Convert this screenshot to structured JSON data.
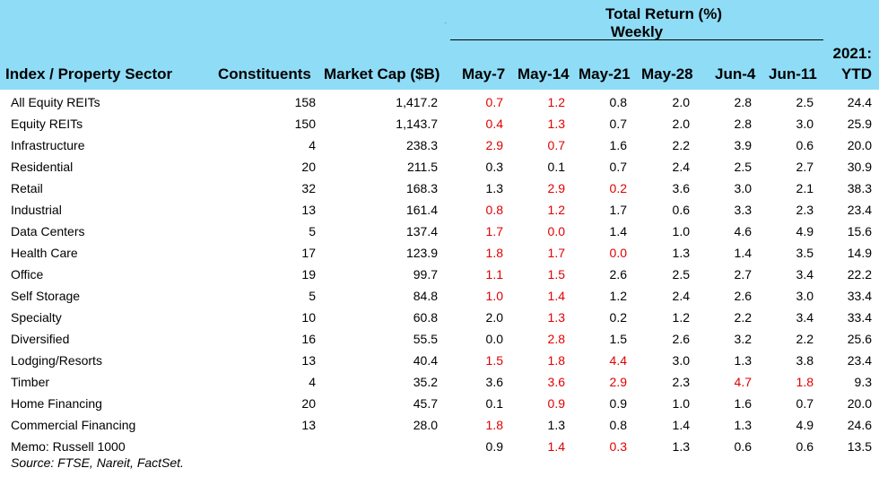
{
  "header": {
    "group_line1": "Total Return (%)",
    "group_line2": "Weekly",
    "dot": "."
  },
  "columns": {
    "sector": "Index / Property Sector",
    "constituents": "Constituents",
    "market_cap": "Market Cap ($B)",
    "weeks": [
      "May-7",
      "May-14",
      "May-21",
      "May-28",
      "Jun-4",
      "Jun-11"
    ],
    "ytd_line1": "2021:",
    "ytd_line2": "YTD"
  },
  "colors": {
    "header_bg": "#8fdcf6",
    "highlight_red": "#e00000"
  },
  "chart_data": {
    "type": "table",
    "rows": [
      {
        "sector": "All Equity REITs",
        "constituents": "158",
        "market_cap": "1,417.2",
        "weekly": [
          "0.7",
          "1.2",
          "0.8",
          "2.0",
          "2.8",
          "2.5"
        ],
        "red": [
          1,
          1,
          0,
          0,
          0,
          0
        ],
        "ytd": "24.4"
      },
      {
        "sector": "Equity REITs",
        "constituents": "150",
        "market_cap": "1,143.7",
        "weekly": [
          "0.4",
          "1.3",
          "0.7",
          "2.0",
          "2.8",
          "3.0"
        ],
        "red": [
          1,
          1,
          0,
          0,
          0,
          0
        ],
        "ytd": "25.9"
      },
      {
        "sector": "Infrastructure",
        "constituents": "4",
        "market_cap": "238.3",
        "weekly": [
          "2.9",
          "0.7",
          "1.6",
          "2.2",
          "3.9",
          "0.6"
        ],
        "red": [
          1,
          1,
          0,
          0,
          0,
          0
        ],
        "ytd": "20.0"
      },
      {
        "sector": "Residential",
        "constituents": "20",
        "market_cap": "211.5",
        "weekly": [
          "0.3",
          "0.1",
          "0.7",
          "2.4",
          "2.5",
          "2.7"
        ],
        "red": [
          0,
          0,
          0,
          0,
          0,
          0
        ],
        "ytd": "30.9"
      },
      {
        "sector": "Retail",
        "constituents": "32",
        "market_cap": "168.3",
        "weekly": [
          "1.3",
          "2.9",
          "0.2",
          "3.6",
          "3.0",
          "2.1"
        ],
        "red": [
          0,
          1,
          1,
          0,
          0,
          0
        ],
        "ytd": "38.3"
      },
      {
        "sector": "Industrial",
        "constituents": "13",
        "market_cap": "161.4",
        "weekly": [
          "0.8",
          "1.2",
          "1.7",
          "0.6",
          "3.3",
          "2.3"
        ],
        "red": [
          1,
          1,
          0,
          0,
          0,
          0
        ],
        "ytd": "23.4"
      },
      {
        "sector": "Data Centers",
        "constituents": "5",
        "market_cap": "137.4",
        "weekly": [
          "1.7",
          "0.0",
          "1.4",
          "1.0",
          "4.6",
          "4.9"
        ],
        "red": [
          1,
          1,
          0,
          0,
          0,
          0
        ],
        "ytd": "15.6"
      },
      {
        "sector": "Health Care",
        "constituents": "17",
        "market_cap": "123.9",
        "weekly": [
          "1.8",
          "1.7",
          "0.0",
          "1.3",
          "1.4",
          "3.5"
        ],
        "red": [
          1,
          1,
          1,
          0,
          0,
          0
        ],
        "ytd": "14.9"
      },
      {
        "sector": "Office",
        "constituents": "19",
        "market_cap": "99.7",
        "weekly": [
          "1.1",
          "1.5",
          "2.6",
          "2.5",
          "2.7",
          "3.4"
        ],
        "red": [
          1,
          1,
          0,
          0,
          0,
          0
        ],
        "ytd": "22.2"
      },
      {
        "sector": "Self Storage",
        "constituents": "5",
        "market_cap": "84.8",
        "weekly": [
          "1.0",
          "1.4",
          "1.2",
          "2.4",
          "2.6",
          "3.0"
        ],
        "red": [
          1,
          1,
          0,
          0,
          0,
          0
        ],
        "ytd": "33.4"
      },
      {
        "sector": "Specialty",
        "constituents": "10",
        "market_cap": "60.8",
        "weekly": [
          "2.0",
          "1.3",
          "0.2",
          "1.2",
          "2.2",
          "3.4"
        ],
        "red": [
          0,
          1,
          0,
          0,
          0,
          0
        ],
        "ytd": "33.4"
      },
      {
        "sector": "Diversified",
        "constituents": "16",
        "market_cap": "55.5",
        "weekly": [
          "0.0",
          "2.8",
          "1.5",
          "2.6",
          "3.2",
          "2.2"
        ],
        "red": [
          0,
          1,
          0,
          0,
          0,
          0
        ],
        "ytd": "25.6"
      },
      {
        "sector": "Lodging/Resorts",
        "constituents": "13",
        "market_cap": "40.4",
        "weekly": [
          "1.5",
          "1.8",
          "4.4",
          "3.0",
          "1.3",
          "3.8"
        ],
        "red": [
          1,
          1,
          1,
          0,
          0,
          0
        ],
        "ytd": "23.4"
      },
      {
        "sector": "Timber",
        "constituents": "4",
        "market_cap": "35.2",
        "weekly": [
          "3.6",
          "3.6",
          "2.9",
          "2.3",
          "4.7",
          "1.8"
        ],
        "red": [
          0,
          1,
          1,
          0,
          1,
          1
        ],
        "ytd": "9.3"
      },
      {
        "sector": "Home Financing",
        "constituents": "20",
        "market_cap": "45.7",
        "weekly": [
          "0.1",
          "0.9",
          "0.9",
          "1.0",
          "1.6",
          "0.7"
        ],
        "red": [
          0,
          1,
          0,
          0,
          0,
          0
        ],
        "ytd": "20.0"
      },
      {
        "sector": "Commercial Financing",
        "constituents": "13",
        "market_cap": "28.0",
        "weekly": [
          "1.8",
          "1.3",
          "0.8",
          "1.4",
          "1.3",
          "4.9"
        ],
        "red": [
          1,
          0,
          0,
          0,
          0,
          0
        ],
        "ytd": "24.6"
      },
      {
        "sector": "Memo: Russell 1000",
        "constituents": "",
        "market_cap": "",
        "weekly": [
          "0.9",
          "1.4",
          "0.3",
          "1.3",
          "0.6",
          "0.6"
        ],
        "red": [
          0,
          1,
          1,
          0,
          0,
          0
        ],
        "ytd": "13.5"
      }
    ]
  },
  "source": "Source: FTSE, Nareit, FactSet."
}
